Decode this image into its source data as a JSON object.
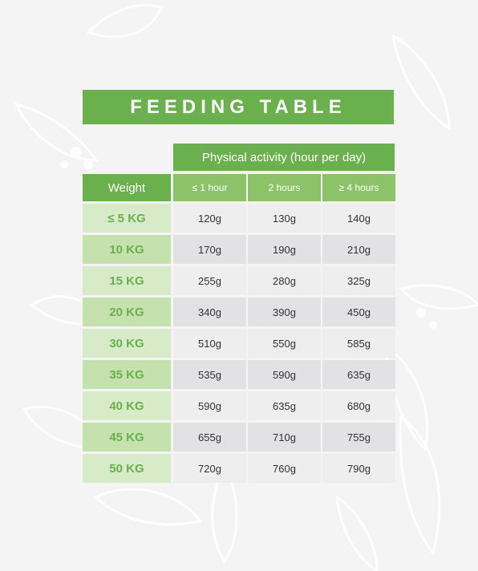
{
  "title": "FEEDING TABLE",
  "header": {
    "activity": "Physical activity (hour per day)",
    "weight": "Weight",
    "columns": [
      "≤ 1 hour",
      "2 hours",
      "≥ 4 hours"
    ]
  },
  "rows": [
    {
      "weight": "≤ 5 KG",
      "values": [
        "120g",
        "130g",
        "140g"
      ]
    },
    {
      "weight": "10 KG",
      "values": [
        "170g",
        "190g",
        "210g"
      ]
    },
    {
      "weight": "15 KG",
      "values": [
        "255g",
        "280g",
        "325g"
      ]
    },
    {
      "weight": "20 KG",
      "values": [
        "340g",
        "390g",
        "450g"
      ]
    },
    {
      "weight": "30 KG",
      "values": [
        "510g",
        "550g",
        "585g"
      ]
    },
    {
      "weight": "35 KG",
      "values": [
        "535g",
        "590g",
        "635g"
      ]
    },
    {
      "weight": "40 KG",
      "values": [
        "590g",
        "635g",
        "680g"
      ]
    },
    {
      "weight": "45 KG",
      "values": [
        "655g",
        "710g",
        "755g"
      ]
    },
    {
      "weight": "50 KG",
      "values": [
        "720g",
        "760g",
        "790g"
      ]
    }
  ],
  "colors": {
    "header_green": "#6ab04c",
    "subheader_green": "#8cc268",
    "weight_cell_light": "#d7ebc8",
    "weight_cell_dark": "#c5e2ae",
    "value_cell_light": "#eeeeef",
    "value_cell_dark": "#e2e2e4",
    "background": "#f4f4f5"
  }
}
